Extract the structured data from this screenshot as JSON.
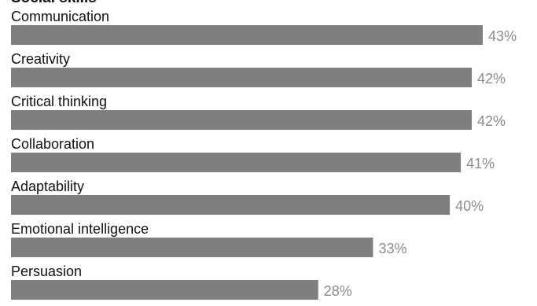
{
  "chart_data": {
    "type": "bar",
    "orientation": "horizontal",
    "title": "Social skills",
    "categories": [
      "Communication",
      "Creativity",
      "Critical thinking",
      "Collaboration",
      "Adaptability",
      "Emotional intelligence",
      "Persuasion"
    ],
    "values": [
      43,
      42,
      42,
      41,
      40,
      33,
      28
    ],
    "value_labels": [
      "43%",
      "42%",
      "42%",
      "41%",
      "40%",
      "33%",
      "28%"
    ],
    "unit": "%",
    "xlim": [
      0,
      43
    ],
    "grid": false,
    "legend": "none",
    "bar_color": "#7f7f7f",
    "label_color": "#111111",
    "value_label_color": "#8c8c8c"
  }
}
